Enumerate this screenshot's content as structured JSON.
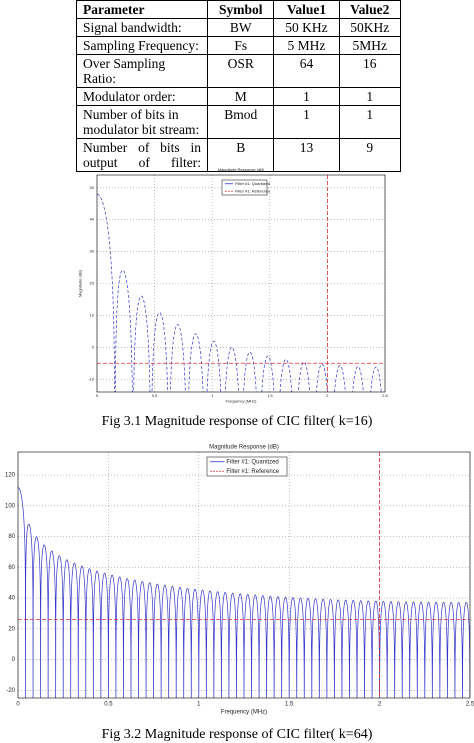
{
  "table": {
    "header": [
      "Parameter",
      "Symbol",
      "Value1",
      "Value2"
    ],
    "rows": [
      [
        "Signal bandwidth:",
        "BW",
        "50 KHz",
        "50KHz"
      ],
      [
        "Sampling Frequency:",
        "Fs",
        "5 MHz",
        "5MHz"
      ],
      [
        "Over Sampling Ratio:",
        "OSR",
        "64",
        "16"
      ],
      [
        "Modulator order:",
        "M",
        "1",
        "1"
      ],
      [
        "Number of bits in modulator bit stream:",
        "Bmod",
        "1",
        "1"
      ],
      [
        "Number of bits in output of filter:",
        "B",
        "13",
        "9"
      ]
    ]
  },
  "figures": [
    {
      "chart_data": {
        "type": "line",
        "title": "Magnitude Response (dB)",
        "x_label": "Frequency (MHz)",
        "y_label": "Magnitude (dB)",
        "xlim": [
          0,
          2.5
        ],
        "xticks": [
          0,
          0.5,
          1,
          1.5,
          2,
          2.5
        ],
        "ylim": [
          -14,
          54
        ],
        "yticks": [
          50,
          40,
          30,
          20,
          10,
          0,
          -10
        ],
        "grid": true,
        "legend": [
          "Filter #1: Quantized",
          "Filter #1: Reference"
        ],
        "color": "#3333cc",
        "reference_level": -5,
        "cutoff": 2
      },
      "caption": "Fig 3.1 Magnitude response of CIC filter( k=16)"
    },
    {
      "chart_data": {
        "type": "line",
        "title": "Magnitude Response (dB)",
        "x_label": "Frequency (MHz)",
        "y_label": "Magnitude (dB)",
        "xlim": [
          0,
          2.5
        ],
        "xticks": [
          0,
          0.5,
          1,
          1.5,
          2,
          2.5
        ],
        "ylim": [
          -25,
          135
        ],
        "yticks": [
          120,
          100,
          80,
          60,
          40,
          20,
          0,
          -20
        ],
        "grid": true,
        "legend": [
          "Filter #1: Quantized",
          "Filter #1: Reference"
        ],
        "color": "#3333cc",
        "reference_level": 26,
        "cutoff": 2
      },
      "caption": "Fig 3.2 Magnitude response of CIC filter( k=64)"
    }
  ]
}
